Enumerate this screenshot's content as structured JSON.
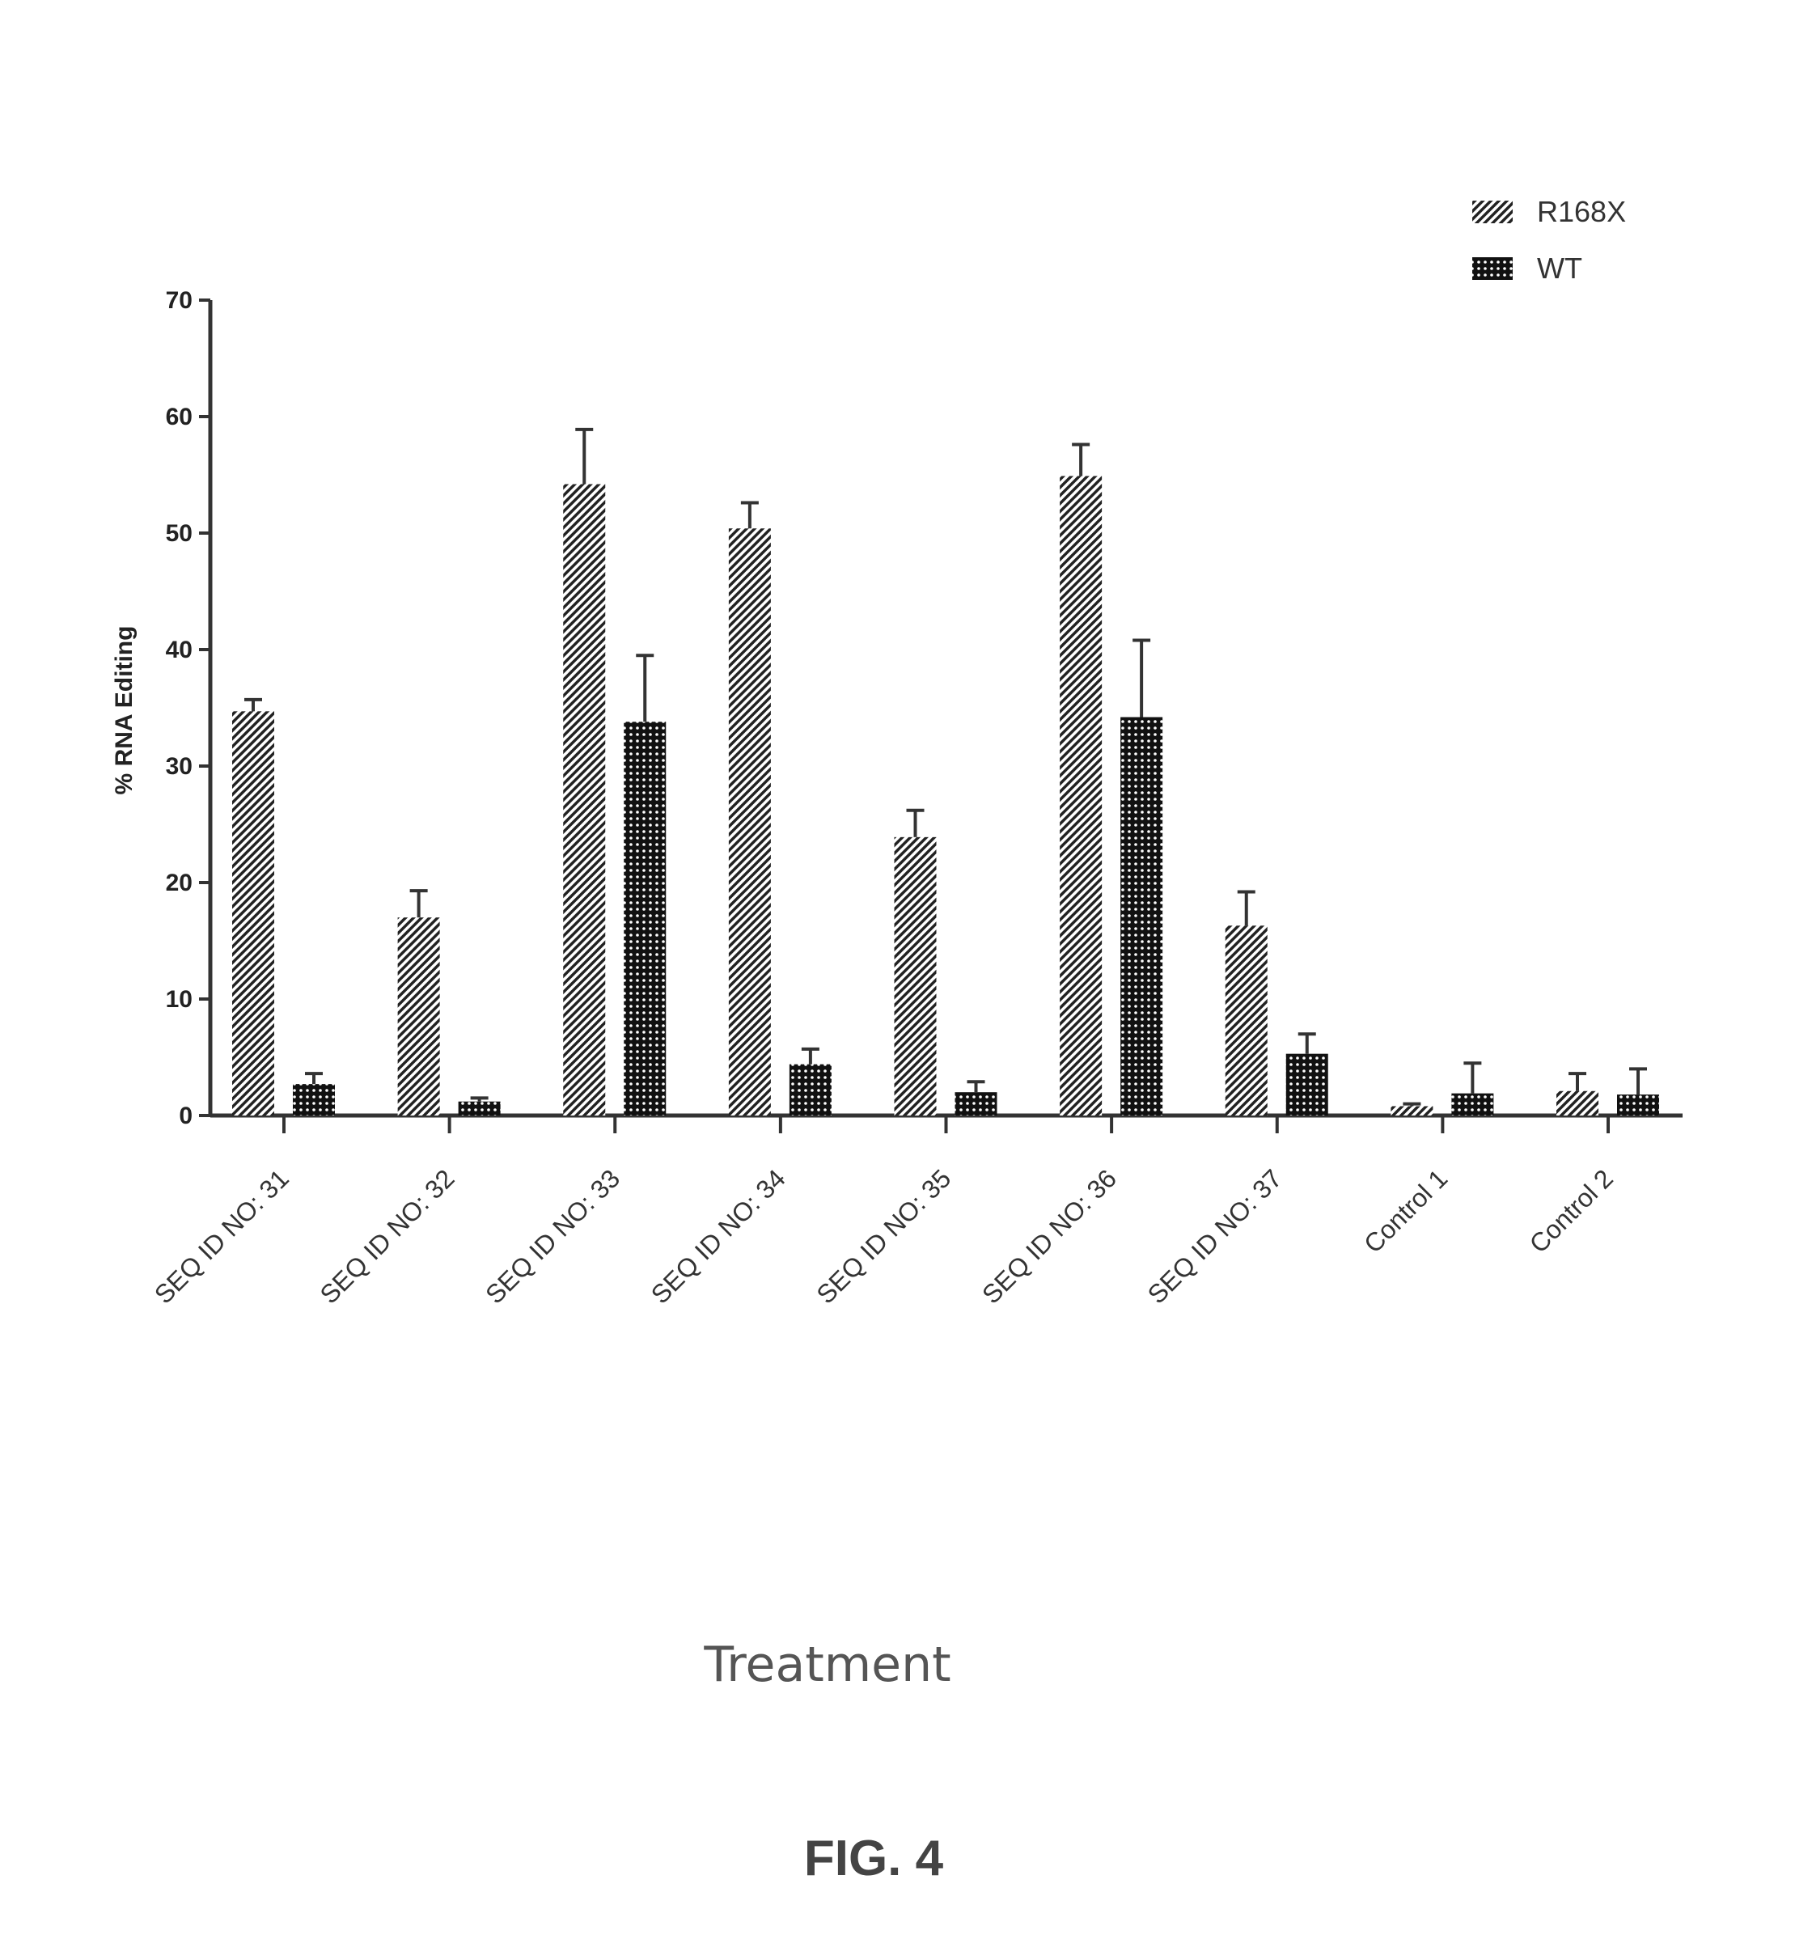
{
  "chart_data": {
    "type": "bar",
    "title": "",
    "xlabel": "Treatment",
    "ylabel": "% RNA Editing",
    "ylim": [
      0,
      70
    ],
    "yticks": [
      0,
      10,
      20,
      30,
      40,
      50,
      60,
      70
    ],
    "grid": false,
    "legend_position": "top-right",
    "categories": [
      "SEQ ID NO: 31",
      "SEQ ID NO: 32",
      "SEQ ID NO: 33",
      "SEQ ID NO: 34",
      "SEQ ID NO: 35",
      "SEQ ID NO: 36",
      "SEQ ID NO: 37",
      "Control 1",
      "Control 2"
    ],
    "series": [
      {
        "name": "R168X",
        "pattern": "diagonal-hatch",
        "color": "#222222",
        "values": [
          34.7,
          17.0,
          54.2,
          50.4,
          23.9,
          54.9,
          16.3,
          0.8,
          2.1
        ],
        "errors": [
          1.0,
          2.3,
          4.7,
          2.2,
          2.3,
          2.7,
          2.9,
          0.2,
          1.5
        ]
      },
      {
        "name": "WT",
        "pattern": "checkered",
        "color": "#111111",
        "values": [
          2.7,
          1.2,
          33.8,
          4.4,
          2.0,
          34.2,
          5.3,
          1.9,
          1.8
        ],
        "errors": [
          0.9,
          0.3,
          5.7,
          1.3,
          0.9,
          6.6,
          1.7,
          2.6,
          2.2
        ]
      }
    ]
  },
  "figure_label": "FIG. 4"
}
